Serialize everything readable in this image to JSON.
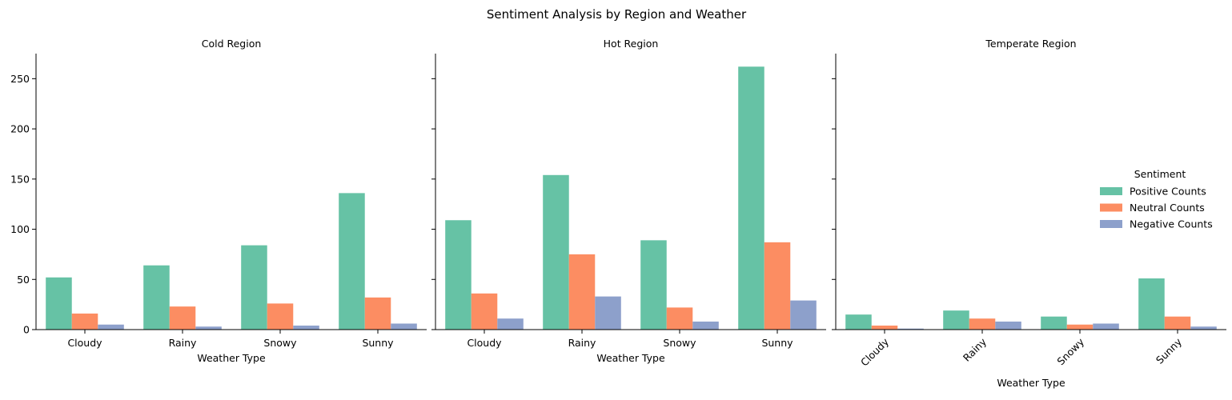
{
  "chart_data": {
    "type": "bar",
    "title": "Sentiment Analysis by Region and Weather",
    "xlabel": "Weather Type",
    "ylabel": "",
    "ylim": [
      0,
      275
    ],
    "yticks": [
      0,
      50,
      100,
      150,
      200,
      250
    ],
    "categories": [
      "Cloudy",
      "Rainy",
      "Snowy",
      "Sunny"
    ],
    "legend": {
      "title": "Sentiment",
      "placement": "center-right",
      "entries": [
        "Positive Counts",
        "Neutral Counts",
        "Negative Counts"
      ]
    },
    "series_colors": [
      "#66c2a5",
      "#fc8d62",
      "#8da0cb"
    ],
    "grid": false,
    "panels": [
      {
        "title": "Cold Region",
        "series": [
          {
            "name": "Positive Counts",
            "values": [
              52,
              64,
              84,
              136
            ]
          },
          {
            "name": "Neutral Counts",
            "values": [
              16,
              23,
              26,
              32
            ]
          },
          {
            "name": "Negative Counts",
            "values": [
              5,
              3,
              4,
              6
            ]
          }
        ]
      },
      {
        "title": "Hot Region",
        "series": [
          {
            "name": "Positive Counts",
            "values": [
              109,
              154,
              89,
              262
            ]
          },
          {
            "name": "Neutral Counts",
            "values": [
              36,
              75,
              22,
              87
            ]
          },
          {
            "name": "Negative Counts",
            "values": [
              11,
              33,
              8,
              29
            ]
          }
        ]
      },
      {
        "title": "Temperate Region",
        "series": [
          {
            "name": "Positive Counts",
            "values": [
              15,
              19,
              13,
              51
            ]
          },
          {
            "name": "Neutral Counts",
            "values": [
              4,
              11,
              5,
              13
            ]
          },
          {
            "name": "Negative Counts",
            "values": [
              1,
              8,
              6,
              3
            ]
          }
        ]
      }
    ]
  }
}
